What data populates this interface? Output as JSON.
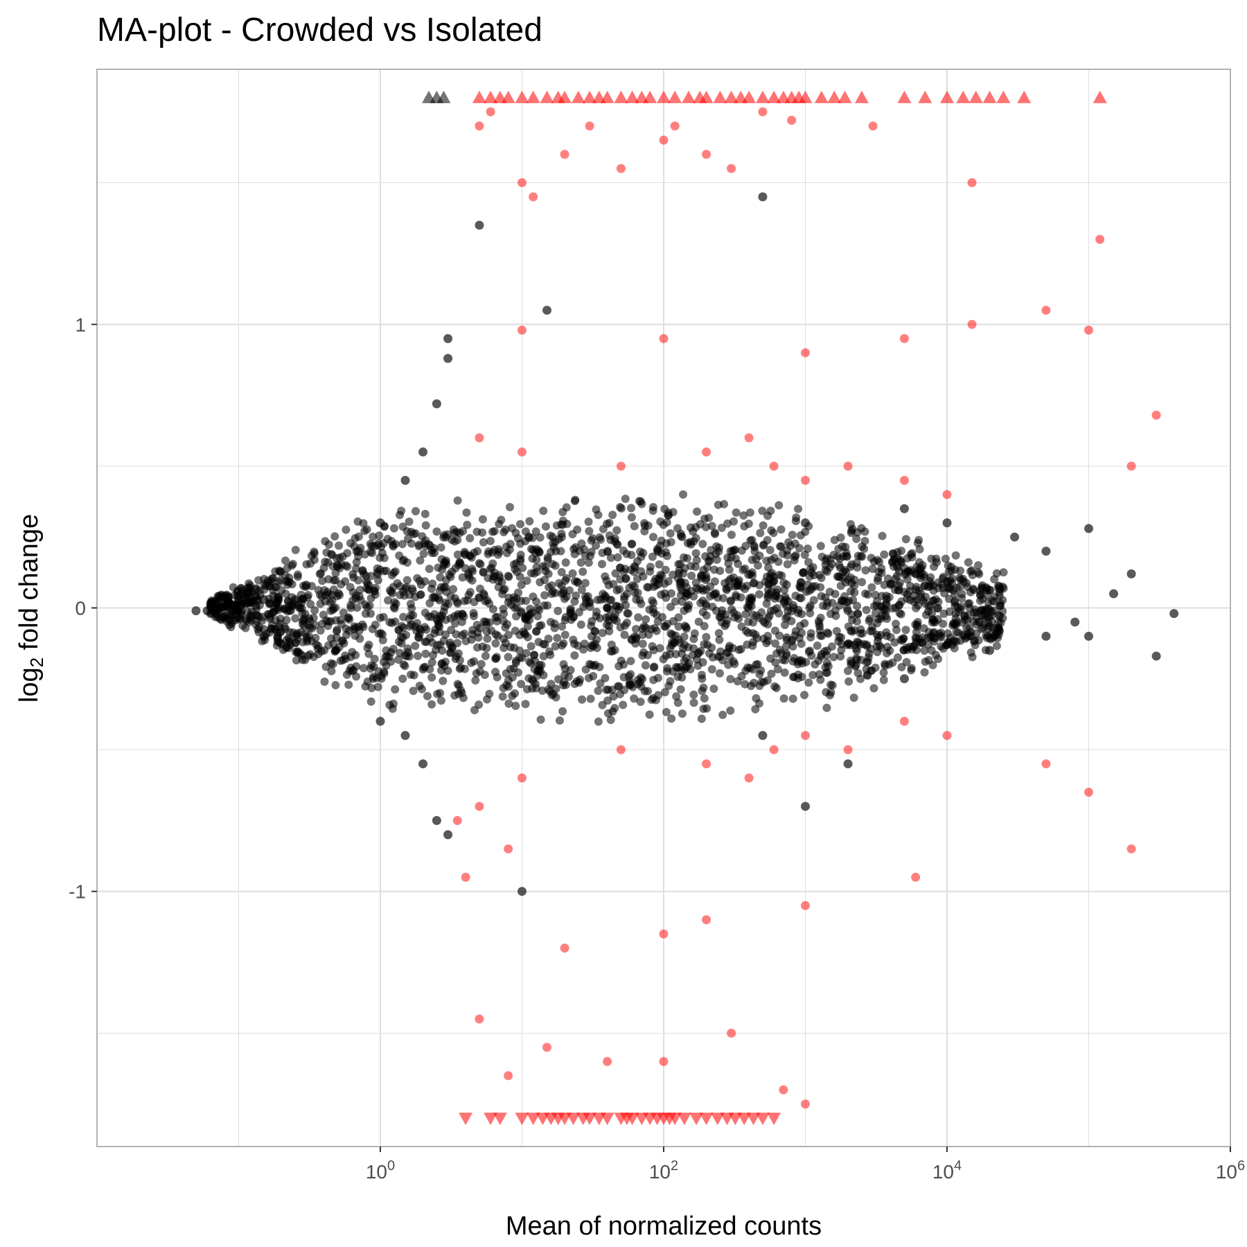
{
  "chart_data": {
    "type": "scatter",
    "title": "MA-plot - Crowded vs Isolated",
    "xlabel": "Mean of normalized counts",
    "ylabel": {
      "base": "log",
      "sub": "2",
      "rest": " fold change"
    },
    "x_scale": "log10",
    "xlim": [
      0.01,
      1000000
    ],
    "ylim": [
      -1.9,
      1.9
    ],
    "x_ticks": [
      {
        "base": "10",
        "exp": "0",
        "value": 1
      },
      {
        "base": "10",
        "exp": "2",
        "value": 100
      },
      {
        "base": "10",
        "exp": "4",
        "value": 10000
      },
      {
        "base": "10",
        "exp": "6",
        "value": 1000000
      }
    ],
    "y_ticks": [
      {
        "label": "1",
        "value": 1
      },
      {
        "label": "0",
        "value": 0
      },
      {
        "label": "-1",
        "value": -1
      }
    ],
    "grid": true,
    "legend": "none",
    "colors": {
      "not_significant": "#000000",
      "significant": "#ff0000",
      "grid": "#dedede",
      "panel_border": "#b3b3b3"
    },
    "marker_notes": {
      "circle": "gene within y-range",
      "triangle_up": "log2 fold change above upper limit",
      "triangle_down": "log2 fold change below lower limit"
    },
    "series": [
      {
        "color_key": "not_significant",
        "points": [
          [
            0.05,
            -0.01
          ],
          [
            0.06,
            -0.01
          ],
          [
            0.07,
            0.02
          ],
          [
            0.1,
            0.02
          ],
          [
            0.12,
            0.02
          ],
          [
            0.15,
            0.03
          ],
          [
            0.3,
            0.08
          ],
          [
            0.5,
            0.15
          ],
          [
            0.7,
            0.2
          ],
          [
            1.0,
            0.3
          ],
          [
            1.5,
            0.45
          ],
          [
            2.0,
            0.55
          ],
          [
            2.5,
            0.72
          ],
          [
            3.0,
            0.95
          ],
          [
            3.0,
            0.88
          ],
          [
            5.0,
            1.35
          ],
          [
            15.0,
            1.05
          ],
          [
            500,
            1.45
          ],
          [
            2.5,
            -0.75
          ],
          [
            3.0,
            -0.8
          ],
          [
            1.0,
            -0.4
          ],
          [
            1.5,
            -0.45
          ],
          [
            2.0,
            -0.55
          ],
          [
            10.0,
            -1.0
          ],
          [
            1000,
            0.3
          ],
          [
            5000,
            0.35
          ],
          [
            10000,
            0.3
          ],
          [
            30000,
            0.25
          ],
          [
            50000,
            0.2
          ],
          [
            100000,
            0.28
          ],
          [
            200000,
            0.12
          ],
          [
            400000,
            -0.02
          ],
          [
            300000,
            -0.17
          ],
          [
            100000,
            -0.1
          ],
          [
            80000,
            -0.05
          ],
          [
            150000,
            0.05
          ],
          [
            50000,
            -0.1
          ],
          [
            20000,
            -0.15
          ],
          [
            5000,
            -0.25
          ],
          [
            1000,
            -0.7
          ],
          [
            2000,
            -0.55
          ],
          [
            500,
            -0.45
          ]
        ]
      },
      {
        "color_key": "significant",
        "points": [
          [
            5.0,
            1.7
          ],
          [
            6.0,
            1.75
          ],
          [
            10.0,
            1.5
          ],
          [
            12.0,
            1.45
          ],
          [
            20.0,
            1.6
          ],
          [
            30.0,
            1.7
          ],
          [
            50.0,
            1.55
          ],
          [
            100.0,
            1.65
          ],
          [
            120.0,
            1.7
          ],
          [
            200.0,
            1.6
          ],
          [
            300.0,
            1.55
          ],
          [
            500.0,
            1.75
          ],
          [
            800.0,
            1.72
          ],
          [
            3000.0,
            1.7
          ],
          [
            15000.0,
            1.5
          ],
          [
            10.0,
            0.98
          ],
          [
            100.0,
            0.95
          ],
          [
            1000.0,
            0.9
          ],
          [
            5000.0,
            0.95
          ],
          [
            15000.0,
            1.0
          ],
          [
            50000.0,
            1.05
          ],
          [
            100000.0,
            0.98
          ],
          [
            5.0,
            0.6
          ],
          [
            10.0,
            0.55
          ],
          [
            50.0,
            0.5
          ],
          [
            200.0,
            0.55
          ],
          [
            400.0,
            0.6
          ],
          [
            600.0,
            0.5
          ],
          [
            1000.0,
            0.45
          ],
          [
            2000.0,
            0.5
          ],
          [
            5000.0,
            0.45
          ],
          [
            10000.0,
            0.4
          ],
          [
            200000.0,
            0.5
          ],
          [
            300000.0,
            0.68
          ],
          [
            120000.0,
            1.3
          ],
          [
            5.0,
            -0.7
          ],
          [
            10.0,
            -0.6
          ],
          [
            50.0,
            -0.5
          ],
          [
            200.0,
            -0.55
          ],
          [
            400.0,
            -0.6
          ],
          [
            600.0,
            -0.5
          ],
          [
            1000.0,
            -0.45
          ],
          [
            2000.0,
            -0.5
          ],
          [
            5000.0,
            -0.4
          ],
          [
            10000.0,
            -0.45
          ],
          [
            50000.0,
            -0.55
          ],
          [
            100000.0,
            -0.65
          ],
          [
            200000.0,
            -0.85
          ],
          [
            5.0,
            -1.45
          ],
          [
            8.0,
            -1.65
          ],
          [
            15.0,
            -1.55
          ],
          [
            40.0,
            -1.6
          ],
          [
            100.0,
            -1.6
          ],
          [
            300.0,
            -1.5
          ],
          [
            700.0,
            -1.7
          ],
          [
            1000.0,
            -1.75
          ],
          [
            20.0,
            -1.2
          ],
          [
            100.0,
            -1.15
          ],
          [
            200.0,
            -1.1
          ],
          [
            1000.0,
            -1.05
          ],
          [
            6000.0,
            -0.95
          ],
          [
            4.0,
            -0.95
          ],
          [
            3.5,
            -0.75
          ],
          [
            8.0,
            -0.85
          ]
        ]
      }
    ],
    "clipped_high": {
      "y": 1.8,
      "not_significant_x": [
        2.2,
        2.5,
        2.8
      ],
      "significant_x": [
        5,
        6,
        7,
        8,
        10,
        12,
        15,
        18,
        20,
        25,
        30,
        35,
        40,
        50,
        60,
        70,
        80,
        100,
        120,
        150,
        180,
        200,
        250,
        300,
        350,
        400,
        500,
        600,
        700,
        800,
        900,
        1000,
        1300,
        1600,
        1900,
        2500,
        5000,
        7000,
        10000,
        13000,
        16000,
        20000,
        25000,
        35000,
        120000
      ]
    },
    "clipped_low": {
      "y": -1.8,
      "significant_x": [
        4,
        6,
        7,
        10,
        12,
        14,
        16,
        18,
        20,
        23,
        27,
        30,
        35,
        40,
        50,
        55,
        60,
        70,
        80,
        90,
        100,
        110,
        120,
        140,
        170,
        200,
        240,
        280,
        320,
        370,
        430,
        500,
        600
      ]
    }
  }
}
